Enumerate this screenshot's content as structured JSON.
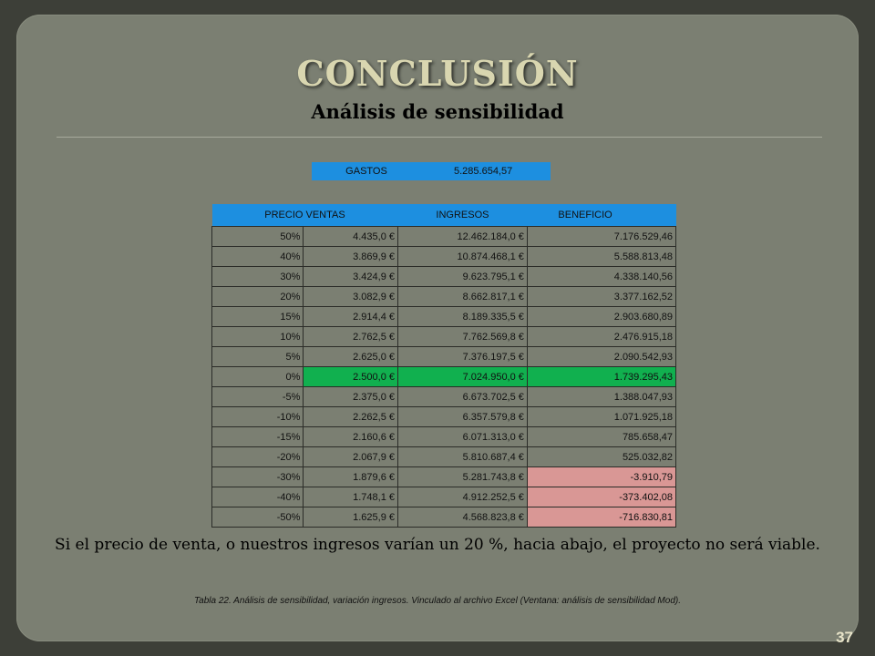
{
  "slide": {
    "title": "CONCLUSIÓN",
    "subtitle": "Análisis de sensibilidad",
    "gastos": {
      "label": "GASTOS",
      "value": "5.285.654,57"
    },
    "table": {
      "headers": [
        "PRECIO VENTAS",
        "INGRESOS",
        "BENEFICIO"
      ],
      "rows": [
        {
          "pct": "50%",
          "precio": "4.435,0 €",
          "ingresos": "12.462.184,0 €",
          "beneficio": "7.176.529,46"
        },
        {
          "pct": "40%",
          "precio": "3.869,9 €",
          "ingresos": "10.874.468,1 €",
          "beneficio": "5.588.813,48"
        },
        {
          "pct": "30%",
          "precio": "3.424,9 €",
          "ingresos": "9.623.795,1 €",
          "beneficio": "4.338.140,56"
        },
        {
          "pct": "20%",
          "precio": "3.082,9 €",
          "ingresos": "8.662.817,1 €",
          "beneficio": "3.377.162,52"
        },
        {
          "pct": "15%",
          "precio": "2.914,4 €",
          "ingresos": "8.189.335,5 €",
          "beneficio": "2.903.680,89"
        },
        {
          "pct": "10%",
          "precio": "2.762,5 €",
          "ingresos": "7.762.569,8 €",
          "beneficio": "2.476.915,18"
        },
        {
          "pct": "5%",
          "precio": "2.625,0 €",
          "ingresos": "7.376.197,5 €",
          "beneficio": "2.090.542,93"
        },
        {
          "pct": "0%",
          "precio": "2.500,0 €",
          "ingresos": "7.024.950,0 €",
          "beneficio": "1.739.295,43"
        },
        {
          "pct": "-5%",
          "precio": "2.375,0 €",
          "ingresos": "6.673.702,5 €",
          "beneficio": "1.388.047,93"
        },
        {
          "pct": "-10%",
          "precio": "2.262,5 €",
          "ingresos": "6.357.579,8 €",
          "beneficio": "1.071.925,18"
        },
        {
          "pct": "-15%",
          "precio": "2.160,6 €",
          "ingresos": "6.071.313,0 €",
          "beneficio": "785.658,47"
        },
        {
          "pct": "-20%",
          "precio": "2.067,9 €",
          "ingresos": "5.810.687,4 €",
          "beneficio": "525.032,82"
        },
        {
          "pct": "-30%",
          "precio": "1.879,6 €",
          "ingresos": "5.281.743,8 €",
          "beneficio": "-3.910,79"
        },
        {
          "pct": "-40%",
          "precio": "1.748,1 €",
          "ingresos": "4.912.252,5 €",
          "beneficio": "-373.402,08"
        },
        {
          "pct": "-50%",
          "precio": "1.625,9 €",
          "ingresos": "4.568.823,8 €",
          "beneficio": "-716.830,81"
        }
      ]
    },
    "conclusion": "Si el precio de venta, o nuestros ingresos varían un 20 %, hacia abajo, el proyecto no será  viable.",
    "caption": "Tabla 22. Análisis de sensibilidad, variación ingresos. Vinculado al archivo Excel (Ventana: análisis de sensibilidad Mod).",
    "page_number": "37",
    "colors": {
      "header_blue": "#1d8fe0",
      "baseline_green": "#11b04f",
      "negative_red": "#d99795",
      "slide_bg": "#7b7f72"
    }
  }
}
